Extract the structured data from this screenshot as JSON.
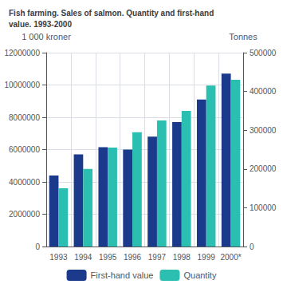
{
  "chart_data": {
    "type": "bar",
    "title": "Fish farming. Sales of salmon. Quantity and first-hand\nvalue. 1993-2000",
    "ylabel": "1 000 kroner",
    "y2label": "Tonnes",
    "categories": [
      "1993",
      "1994",
      "1995",
      "1996",
      "1997",
      "1998",
      "1999",
      "2000*"
    ],
    "series": [
      {
        "name": "First-hand value",
        "color": "#1b3a8c",
        "values": [
          4400000,
          5700000,
          6150000,
          6000000,
          6800000,
          7700000,
          9100000,
          10700000
        ]
      },
      {
        "name": "Quantity",
        "color": "#2abfb0",
        "axis": "y2",
        "values": [
          150000,
          200000,
          255000,
          295000,
          325000,
          350000,
          415000,
          430000
        ]
      }
    ],
    "ylim": [
      0,
      12000000
    ],
    "yticks": [
      0,
      2000000,
      4000000,
      6000000,
      8000000,
      10000000,
      12000000
    ],
    "y2lim": [
      0,
      500000
    ],
    "y2ticks": [
      0,
      100000,
      200000,
      300000,
      400000,
      500000
    ],
    "grid": true,
    "legend": "bottom"
  }
}
